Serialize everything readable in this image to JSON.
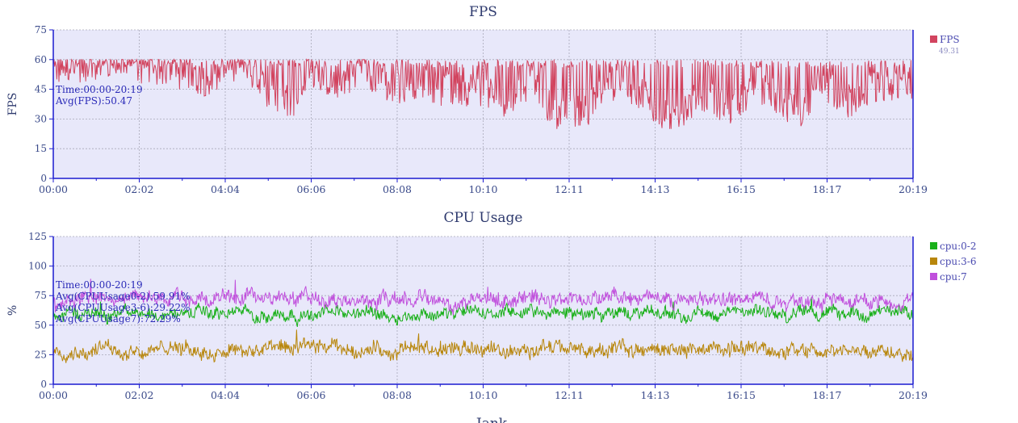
{
  "chart_data": [
    {
      "type": "line",
      "title": "FPS",
      "ylabel": "FPS",
      "xlabel": "",
      "x_ticks": [
        "00:00",
        "02:02",
        "04:04",
        "06:06",
        "08:08",
        "10:10",
        "12:11",
        "14:13",
        "16:15",
        "18:17",
        "20:19"
      ],
      "xlim_seconds": [
        0,
        1219
      ],
      "ylim": [
        0,
        75
      ],
      "y_ticks": [
        0,
        15,
        30,
        45,
        60,
        75
      ],
      "grid": true,
      "legend_position": "top-right",
      "legend_value": "49.31",
      "annotation": [
        "Time:00:00-20:19",
        "Avg(FPS):50.47"
      ],
      "series": [
        {
          "name": "FPS",
          "color": "#d2445f",
          "approx_points": [
            [
              0,
              55
            ],
            [
              30,
              58
            ],
            [
              60,
              55
            ],
            [
              100,
              57
            ],
            [
              160,
              55
            ],
            [
              220,
              50
            ],
            [
              270,
              58
            ],
            [
              300,
              45
            ],
            [
              345,
              38
            ],
            [
              360,
              56
            ],
            [
              400,
              48
            ],
            [
              440,
              56
            ],
            [
              480,
              45
            ],
            [
              520,
              50
            ],
            [
              555,
              44
            ],
            [
              600,
              46
            ],
            [
              640,
              40
            ],
            [
              680,
              50
            ],
            [
              710,
              32
            ],
            [
              760,
              36
            ],
            [
              800,
              50
            ],
            [
              840,
              42
            ],
            [
              870,
              30
            ],
            [
              920,
              42
            ],
            [
              960,
              36
            ],
            [
              1000,
              45
            ],
            [
              1030,
              40
            ],
            [
              1060,
              33
            ],
            [
              1090,
              50
            ],
            [
              1120,
              38
            ],
            [
              1160,
              45
            ],
            [
              1219,
              49
            ]
          ]
        }
      ]
    },
    {
      "type": "line",
      "title": "CPU Usage",
      "ylabel": "%",
      "xlabel": "",
      "x_ticks": [
        "00:00",
        "02:02",
        "04:04",
        "06:06",
        "08:08",
        "10:10",
        "12:11",
        "14:13",
        "16:15",
        "18:17",
        "20:19"
      ],
      "xlim_seconds": [
        0,
        1219
      ],
      "ylim": [
        0,
        125
      ],
      "y_ticks": [
        0,
        25,
        50,
        75,
        100,
        125
      ],
      "grid": true,
      "legend_position": "top-right",
      "annotation": [
        "Time:00:00-20:19",
        "Avg(CPUUsage0-2):59.91%",
        "Avg(CPUUsage3-6):29.22%",
        "Avg(CPUUsage7):72.29%"
      ],
      "series": [
        {
          "name": "cpu:0-2",
          "color": "#19b019",
          "mean": 59.91,
          "spread": 6
        },
        {
          "name": "cpu:3-6",
          "color": "#b8860b",
          "mean": 29.22,
          "spread": 7
        },
        {
          "name": "cpu:7",
          "color": "#c04fdc",
          "mean": 72.29,
          "spread": 7
        }
      ]
    }
  ],
  "bottom_title": "Jank",
  "colors": {
    "plot_background": "#e8e8fa",
    "axis": "#1b1bd0",
    "tick_text": "#3a4a8a",
    "title_text": "#2e3a6e"
  }
}
